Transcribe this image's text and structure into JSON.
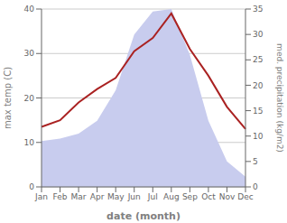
{
  "chart_data": {
    "type": "line",
    "xlabel": "date (month)",
    "ylabel": "max temp (C)",
    "y2label": "med. precipitation (kg/m2)",
    "categories": [
      "Jan",
      "Feb",
      "Mar",
      "Apr",
      "May",
      "Jun",
      "Jul",
      "Aug",
      "Sep",
      "Oct",
      "Nov",
      "Dec"
    ],
    "series": [
      {
        "type": "area",
        "axis": "y2",
        "color": "#c8ccee",
        "values": [
          9.0,
          9.5,
          10.5,
          13.0,
          19.0,
          30.0,
          34.5,
          35.0,
          26.0,
          13.0,
          5.0,
          2.0
        ]
      },
      {
        "type": "line",
        "color": "#aa2222",
        "values": [
          13.5,
          15.0,
          19.0,
          22.0,
          24.5,
          30.5,
          33.5,
          39.0,
          31.0,
          25.0,
          18.0,
          13.0
        ]
      }
    ],
    "ylim": [
      0,
      40
    ],
    "yticks": [
      0,
      10,
      20,
      30,
      40
    ],
    "y2lim": [
      0,
      35
    ],
    "y2ticks": [
      0,
      5,
      10,
      15,
      20,
      25,
      30,
      35
    ],
    "grid": true
  }
}
